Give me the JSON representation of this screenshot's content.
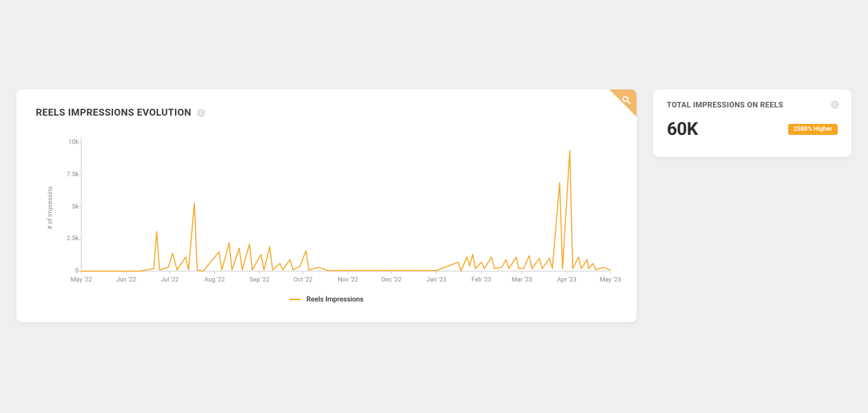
{
  "page_background": "#eeeff0",
  "chart_card": {
    "title": "REELS IMPRESSIONS EVOLUTION",
    "title_fontsize": 14,
    "info_icon_color": "#e1e1e1",
    "corner_tag_color": "#f4b86a",
    "corner_icon": "search-icon",
    "chart": {
      "type": "line",
      "y_axis_title": "# of Impressins",
      "label_fontsize": 9,
      "label_color": "#888888",
      "line_color": "#f5a623",
      "line_width": 1.5,
      "background_color": "#ffffff",
      "axis_color": "#cccccc",
      "ylim": [
        0,
        10500
      ],
      "y_ticks": [
        {
          "v": 0,
          "label": "0"
        },
        {
          "v": 2500,
          "label": "2.5k"
        },
        {
          "v": 5000,
          "label": "5k"
        },
        {
          "v": 7500,
          "label": "7.5k"
        },
        {
          "v": 10000,
          "label": "10k"
        }
      ],
      "xlim": [
        0,
        365
      ],
      "x_ticks": [
        {
          "v": 0,
          "label": "May '22"
        },
        {
          "v": 31,
          "label": "Jun '22"
        },
        {
          "v": 61,
          "label": "Jul '22"
        },
        {
          "v": 92,
          "label": "Aug '22"
        },
        {
          "v": 123,
          "label": "Sep '22"
        },
        {
          "v": 153,
          "label": "Oct '22"
        },
        {
          "v": 184,
          "label": "Nov '22"
        },
        {
          "v": 214,
          "label": "Dec '22"
        },
        {
          "v": 245,
          "label": "Jan '23"
        },
        {
          "v": 276,
          "label": "Feb '23"
        },
        {
          "v": 304,
          "label": "Mar '23"
        },
        {
          "v": 335,
          "label": "Apr '23"
        },
        {
          "v": 365,
          "label": "May '23"
        }
      ],
      "series": [
        {
          "x": 0,
          "y": 0
        },
        {
          "x": 40,
          "y": 0
        },
        {
          "x": 50,
          "y": 200
        },
        {
          "x": 52,
          "y": 3100
        },
        {
          "x": 54,
          "y": 100
        },
        {
          "x": 60,
          "y": 300
        },
        {
          "x": 63,
          "y": 1400
        },
        {
          "x": 66,
          "y": 100
        },
        {
          "x": 72,
          "y": 1100
        },
        {
          "x": 74,
          "y": 100
        },
        {
          "x": 78,
          "y": 5300
        },
        {
          "x": 80,
          "y": 100
        },
        {
          "x": 84,
          "y": 0
        },
        {
          "x": 95,
          "y": 1500
        },
        {
          "x": 97,
          "y": 100
        },
        {
          "x": 102,
          "y": 2200
        },
        {
          "x": 104,
          "y": 100
        },
        {
          "x": 109,
          "y": 1800
        },
        {
          "x": 111,
          "y": 100
        },
        {
          "x": 116,
          "y": 2100
        },
        {
          "x": 118,
          "y": 100
        },
        {
          "x": 124,
          "y": 1300
        },
        {
          "x": 126,
          "y": 100
        },
        {
          "x": 130,
          "y": 1900
        },
        {
          "x": 132,
          "y": 100
        },
        {
          "x": 137,
          "y": 600
        },
        {
          "x": 139,
          "y": 100
        },
        {
          "x": 144,
          "y": 900
        },
        {
          "x": 146,
          "y": 100
        },
        {
          "x": 151,
          "y": 400
        },
        {
          "x": 155,
          "y": 1600
        },
        {
          "x": 157,
          "y": 100
        },
        {
          "x": 164,
          "y": 300
        },
        {
          "x": 170,
          "y": 50
        },
        {
          "x": 245,
          "y": 50
        },
        {
          "x": 260,
          "y": 700
        },
        {
          "x": 262,
          "y": 30
        },
        {
          "x": 266,
          "y": 1100
        },
        {
          "x": 268,
          "y": 400
        },
        {
          "x": 270,
          "y": 1300
        },
        {
          "x": 272,
          "y": 200
        },
        {
          "x": 276,
          "y": 700
        },
        {
          "x": 278,
          "y": 200
        },
        {
          "x": 283,
          "y": 1100
        },
        {
          "x": 285,
          "y": 200
        },
        {
          "x": 290,
          "y": 300
        },
        {
          "x": 293,
          "y": 900
        },
        {
          "x": 295,
          "y": 200
        },
        {
          "x": 300,
          "y": 1100
        },
        {
          "x": 302,
          "y": 200
        },
        {
          "x": 305,
          "y": 200
        },
        {
          "x": 309,
          "y": 1200
        },
        {
          "x": 311,
          "y": 200
        },
        {
          "x": 316,
          "y": 1000
        },
        {
          "x": 318,
          "y": 200
        },
        {
          "x": 323,
          "y": 1000
        },
        {
          "x": 325,
          "y": 200
        },
        {
          "x": 330,
          "y": 6900
        },
        {
          "x": 332,
          "y": 200
        },
        {
          "x": 337,
          "y": 9400
        },
        {
          "x": 339,
          "y": 200
        },
        {
          "x": 343,
          "y": 1100
        },
        {
          "x": 345,
          "y": 200
        },
        {
          "x": 349,
          "y": 900
        },
        {
          "x": 350,
          "y": 200
        },
        {
          "x": 353,
          "y": 600
        },
        {
          "x": 355,
          "y": 100
        },
        {
          "x": 360,
          "y": 300
        },
        {
          "x": 365,
          "y": 100
        }
      ],
      "legend_label": "Reels Impressions",
      "legend_fontsize": 10
    }
  },
  "kpi_card": {
    "title": "TOTAL IMPRESSIONS ON REELS",
    "value": "60K",
    "value_fontsize": 26,
    "badge_text": "2588% Higher",
    "badge_bg": "#f5a623",
    "badge_color": "#ffffff",
    "info_icon_color": "#e1e1e1"
  }
}
